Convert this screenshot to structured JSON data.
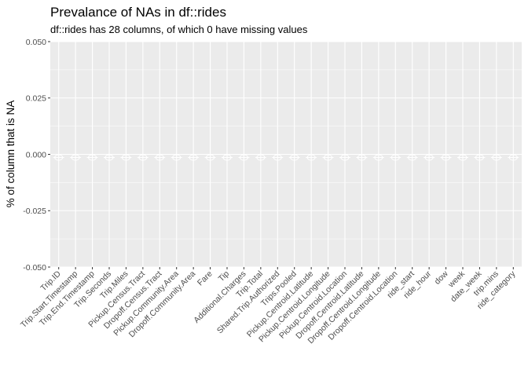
{
  "chart_data": {
    "type": "bar",
    "title": "Prevalance of NAs in df::rides",
    "subtitle": "df::rides has 28 columns, of which 0 have missing values",
    "xlabel": "",
    "ylabel": "% of column that is NA",
    "ylim": [
      -0.05,
      0.05
    ],
    "yticks": [
      "0.050",
      "0.025",
      "0.000",
      "-0.025",
      "-0.050"
    ],
    "ytick_values": [
      0.05,
      0.025,
      0.0,
      -0.025,
      -0.05
    ],
    "grid": true,
    "legend": "none",
    "colors": {
      "panel_bg": "#ebebeb",
      "grid": "#ffffff",
      "marker_stroke": "#ffffff",
      "tick": "#333333"
    },
    "categories": [
      "Trip.ID",
      "Trip.Start.Timestamp",
      "Trip.End.Timestamp",
      "Trip.Seconds",
      "Trip.Miles",
      "Pickup.Census.Tract",
      "Dropoff.Census.Tract",
      "Pickup.Community.Area",
      "Dropoff.Community.Area",
      "Fare",
      "Tip",
      "Additional.Charges",
      "Trip.Total",
      "Shared.Trip.Authorized",
      "Trips.Pooled",
      "Pickup.Centroid.Latitude",
      "Pickup.Centroid.Longitude",
      "Pickup.Centroid.Location",
      "Dropoff.Centroid.Latitude",
      "Dropoff.Centroid.Longitude",
      "Dropoff.Centroid.Location",
      "ride_start",
      "ride_hour",
      "dow",
      "week",
      "date_week",
      "trip.mins",
      "ride_category"
    ],
    "values": [
      0,
      0,
      0,
      0,
      0,
      0,
      0,
      0,
      0,
      0,
      0,
      0,
      0,
      0,
      0,
      0,
      0,
      0,
      0,
      0,
      0,
      0,
      0,
      0,
      0,
      0,
      0,
      0
    ]
  }
}
